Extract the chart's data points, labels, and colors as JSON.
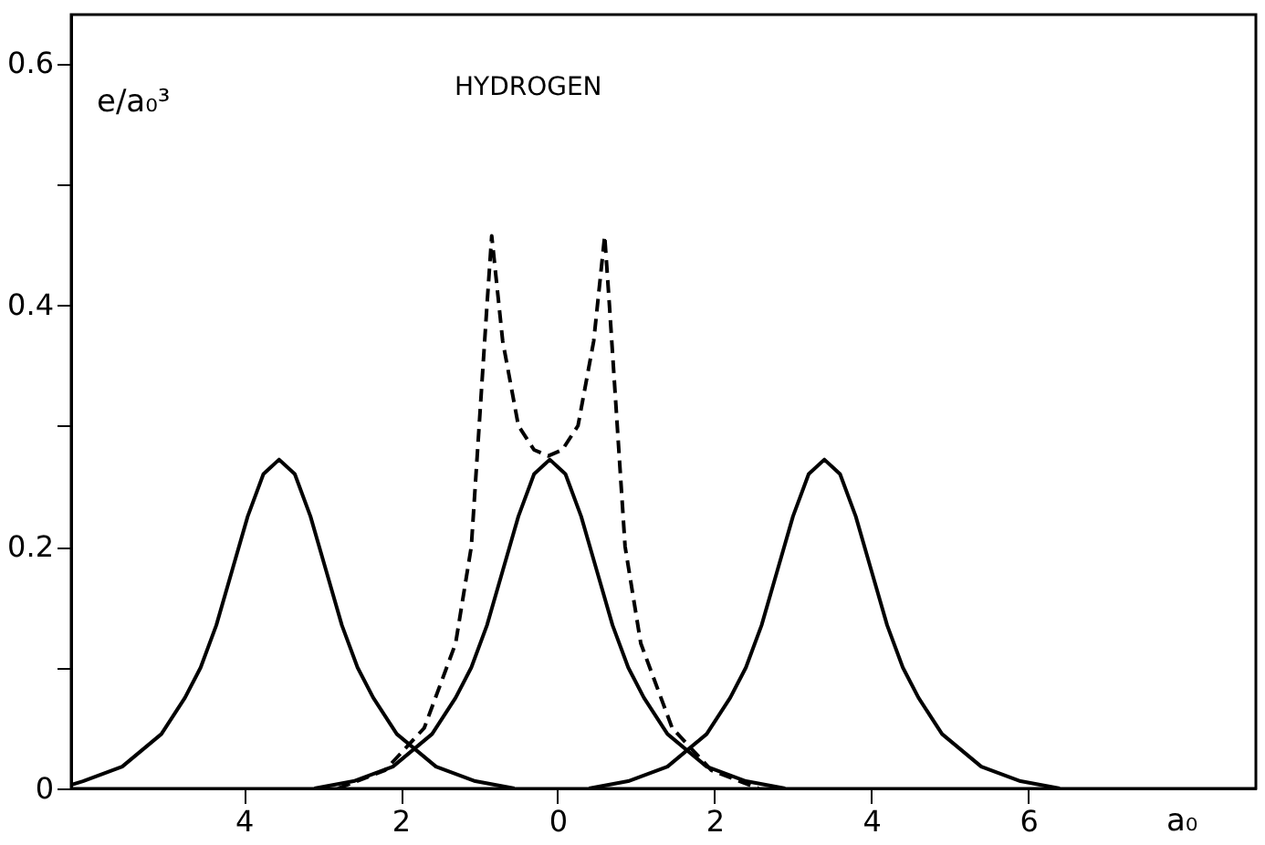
{
  "chart_data": {
    "type": "line",
    "title": "HYDROGEN",
    "xlabel": "a₀",
    "ylabel": "e/a₀³",
    "xlim": [
      -6.2,
      8.9
    ],
    "ylim": [
      0,
      0.64
    ],
    "xticks": [
      {
        "value": -4,
        "label": "4"
      },
      {
        "value": -2,
        "label": "2"
      },
      0,
      2,
      4,
      6
    ],
    "yticks": [
      0,
      {
        "value": 0.1,
        "label": null
      },
      0.2,
      {
        "value": 0.3,
        "label": null
      },
      0.4,
      {
        "value": 0.5,
        "label": null
      },
      0.6
    ],
    "grid": false,
    "marker": "none",
    "series": [
      {
        "color": "#000000",
        "line_style": "solid",
        "x": [
          -6.2,
          -6.05,
          -5.55,
          -5.05,
          -4.75,
          -4.55,
          -4.35,
          -4.15,
          -3.95,
          -3.75,
          -3.55,
          -3.35,
          -3.15,
          -2.95,
          -2.75,
          -2.55,
          -2.35,
          -2.05,
          -1.55,
          -1.05,
          -0.55
        ],
        "values": [
          0.003,
          0.006,
          0.018,
          0.045,
          0.075,
          0.1,
          0.135,
          0.18,
          0.225,
          0.26,
          0.272,
          0.26,
          0.225,
          0.18,
          0.135,
          0.1,
          0.075,
          0.045,
          0.018,
          0.006,
          0
        ]
      },
      {
        "color": "#000000",
        "line_style": "solid",
        "x": [
          -3.1,
          -2.6,
          -2.1,
          -1.6,
          -1.3,
          -1.1,
          -0.9,
          -0.7,
          -0.5,
          -0.3,
          -0.1,
          0.1,
          0.3,
          0.5,
          0.7,
          0.9,
          1.1,
          1.4,
          1.9,
          2.4,
          2.9
        ],
        "values": [
          0,
          0.006,
          0.018,
          0.045,
          0.075,
          0.1,
          0.135,
          0.18,
          0.225,
          0.26,
          0.272,
          0.26,
          0.225,
          0.18,
          0.135,
          0.1,
          0.075,
          0.045,
          0.018,
          0.006,
          0
        ]
      },
      {
        "color": "#000000",
        "line_style": "solid",
        "x": [
          0.4,
          0.9,
          1.4,
          1.9,
          2.2,
          2.4,
          2.6,
          2.8,
          3.0,
          3.2,
          3.4,
          3.6,
          3.8,
          4.0,
          4.2,
          4.4,
          4.6,
          4.9,
          5.4,
          5.9,
          6.4
        ],
        "values": [
          0,
          0.006,
          0.018,
          0.045,
          0.075,
          0.1,
          0.135,
          0.18,
          0.225,
          0.26,
          0.272,
          0.26,
          0.225,
          0.18,
          0.135,
          0.1,
          0.075,
          0.045,
          0.018,
          0.006,
          0
        ]
      },
      {
        "color": "#000000",
        "line_style": "dashed",
        "x": [
          -2.8,
          -2.2,
          -1.7,
          -1.3,
          -1.1,
          -1.0,
          -0.9,
          -0.84,
          -0.7,
          -0.5,
          -0.3,
          -0.12,
          0.06,
          0.26,
          0.46,
          0.6,
          0.66,
          0.76,
          0.86,
          1.06,
          1.46,
          1.96,
          2.56
        ],
        "values": [
          0,
          0.015,
          0.05,
          0.12,
          0.2,
          0.3,
          0.4,
          0.457,
          0.37,
          0.3,
          0.28,
          0.275,
          0.28,
          0.3,
          0.37,
          0.457,
          0.4,
          0.3,
          0.2,
          0.12,
          0.05,
          0.015,
          0
        ]
      }
    ]
  }
}
